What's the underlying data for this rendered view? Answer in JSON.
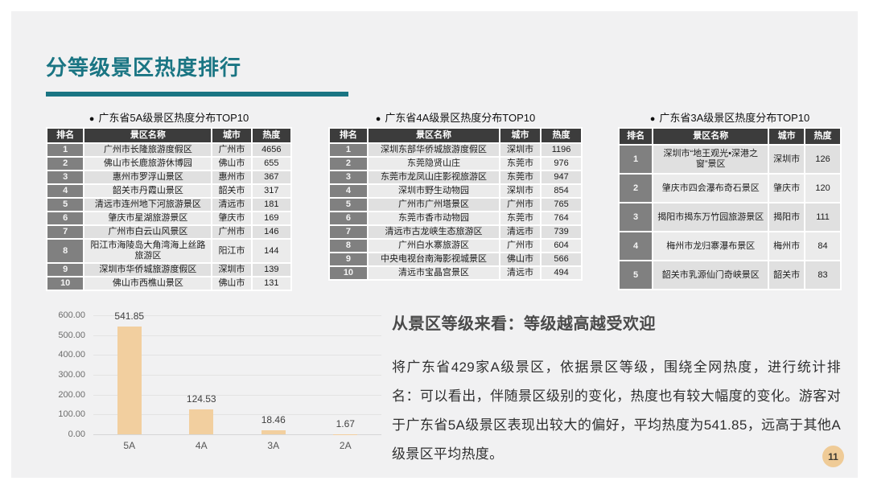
{
  "page": {
    "title": "分等级景区热度排行",
    "page_number": "11",
    "bullet_icon": "●"
  },
  "tables": [
    {
      "caption": "广东省5A级景区热度分布TOP10",
      "headers": [
        "排名",
        "景区名称",
        "城市",
        "热度"
      ],
      "rows": [
        [
          "1",
          "广州市长隆旅游度假区",
          "广州市",
          "4656"
        ],
        [
          "2",
          "佛山市长鹿旅游休博园",
          "佛山市",
          "655"
        ],
        [
          "3",
          "惠州市罗浮山景区",
          "惠州市",
          "367"
        ],
        [
          "4",
          "韶关市丹霞山景区",
          "韶关市",
          "317"
        ],
        [
          "5",
          "清远市连州地下河旅游景区",
          "清远市",
          "181"
        ],
        [
          "6",
          "肇庆市星湖旅游景区",
          "肇庆市",
          "169"
        ],
        [
          "7",
          "广州市白云山风景区",
          "广州市",
          "146"
        ],
        [
          "8",
          "阳江市海陵岛大角湾海上丝路旅游区",
          "阳江市",
          "144"
        ],
        [
          "9",
          "深圳市华侨城旅游度假区",
          "深圳市",
          "139"
        ],
        [
          "10",
          "佛山市西樵山景区",
          "佛山市",
          "131"
        ]
      ]
    },
    {
      "caption": "广东省4A级景区热度分布TOP10",
      "headers": [
        "排名",
        "景区名称",
        "城市",
        "热度"
      ],
      "rows": [
        [
          "1",
          "深圳东部华侨城旅游度假区",
          "深圳市",
          "1196"
        ],
        [
          "2",
          "东莞隐贤山庄",
          "东莞市",
          "976"
        ],
        [
          "3",
          "东莞市龙凤山庄影视旅游区",
          "东莞市",
          "947"
        ],
        [
          "4",
          "深圳市野生动物园",
          "深圳市",
          "854"
        ],
        [
          "5",
          "广州市广州塔景区",
          "广州市",
          "765"
        ],
        [
          "6",
          "东莞市香市动物园",
          "东莞市",
          "764"
        ],
        [
          "7",
          "清远市古龙峡生态旅游区",
          "清远市",
          "739"
        ],
        [
          "8",
          "广州白水寨旅游区",
          "广州市",
          "604"
        ],
        [
          "9",
          "中央电视台南海影视城景区",
          "佛山市",
          "566"
        ],
        [
          "10",
          "清远市宝晶宫景区",
          "清远市",
          "494"
        ]
      ]
    },
    {
      "caption": "广东省3A级景区热度分布TOP10",
      "headers": [
        "排名",
        "景区名称",
        "城市",
        "热度"
      ],
      "rows": [
        [
          "1",
          "深圳市“地王观光•深港之窗”景区",
          "深圳市",
          "126"
        ],
        [
          "2",
          "肇庆市四会瀑布奇石景区",
          "肇庆市",
          "120"
        ],
        [
          "3",
          "揭阳市揭东万竹园旅游景区",
          "揭阳市",
          "111"
        ],
        [
          "4",
          "梅州市龙归寨瀑布景区",
          "梅州市",
          "84"
        ],
        [
          "5",
          "韶关市乳源仙门奇峡景区",
          "韶关市",
          "83"
        ]
      ]
    }
  ],
  "chart_data": {
    "type": "bar",
    "title": "",
    "xlabel": "",
    "ylabel": "",
    "categories": [
      "5A",
      "4A",
      "3A",
      "2A"
    ],
    "values": [
      541.85,
      124.53,
      18.46,
      1.67
    ],
    "value_labels": [
      "541.85",
      "124.53",
      "18.46",
      "1.67"
    ],
    "ylim": [
      0,
      600
    ],
    "ytick_step": 100,
    "ytick_labels": [
      "600.00",
      "500.00",
      "400.00",
      "300.00",
      "200.00",
      "100.00",
      "0.00"
    ],
    "grid": true,
    "legend_position": "none",
    "bar_color": "#F2CF9F"
  },
  "analysis": {
    "heading": "从景区等级来看：等级越高越受欢迎",
    "body": "将广东省429家A级景区，依据景区等级，围绕全网热度，进行统计排名：可以看出，伴随景区级别的变化，热度也有较大幅度的变化。游客对于广东省5A级景区表现出较大的偏好，平均热度为541.85，远高于其他A级景区平均热度。"
  },
  "colors": {
    "accent_teal": "#1A7583",
    "bar_fill": "#F2CF9F",
    "table_header_bg": "#3C3C3C",
    "rank_cell_bg": "#808080",
    "badge_bg": "#EFCB97",
    "slide_bg": "#F1F1F2"
  }
}
